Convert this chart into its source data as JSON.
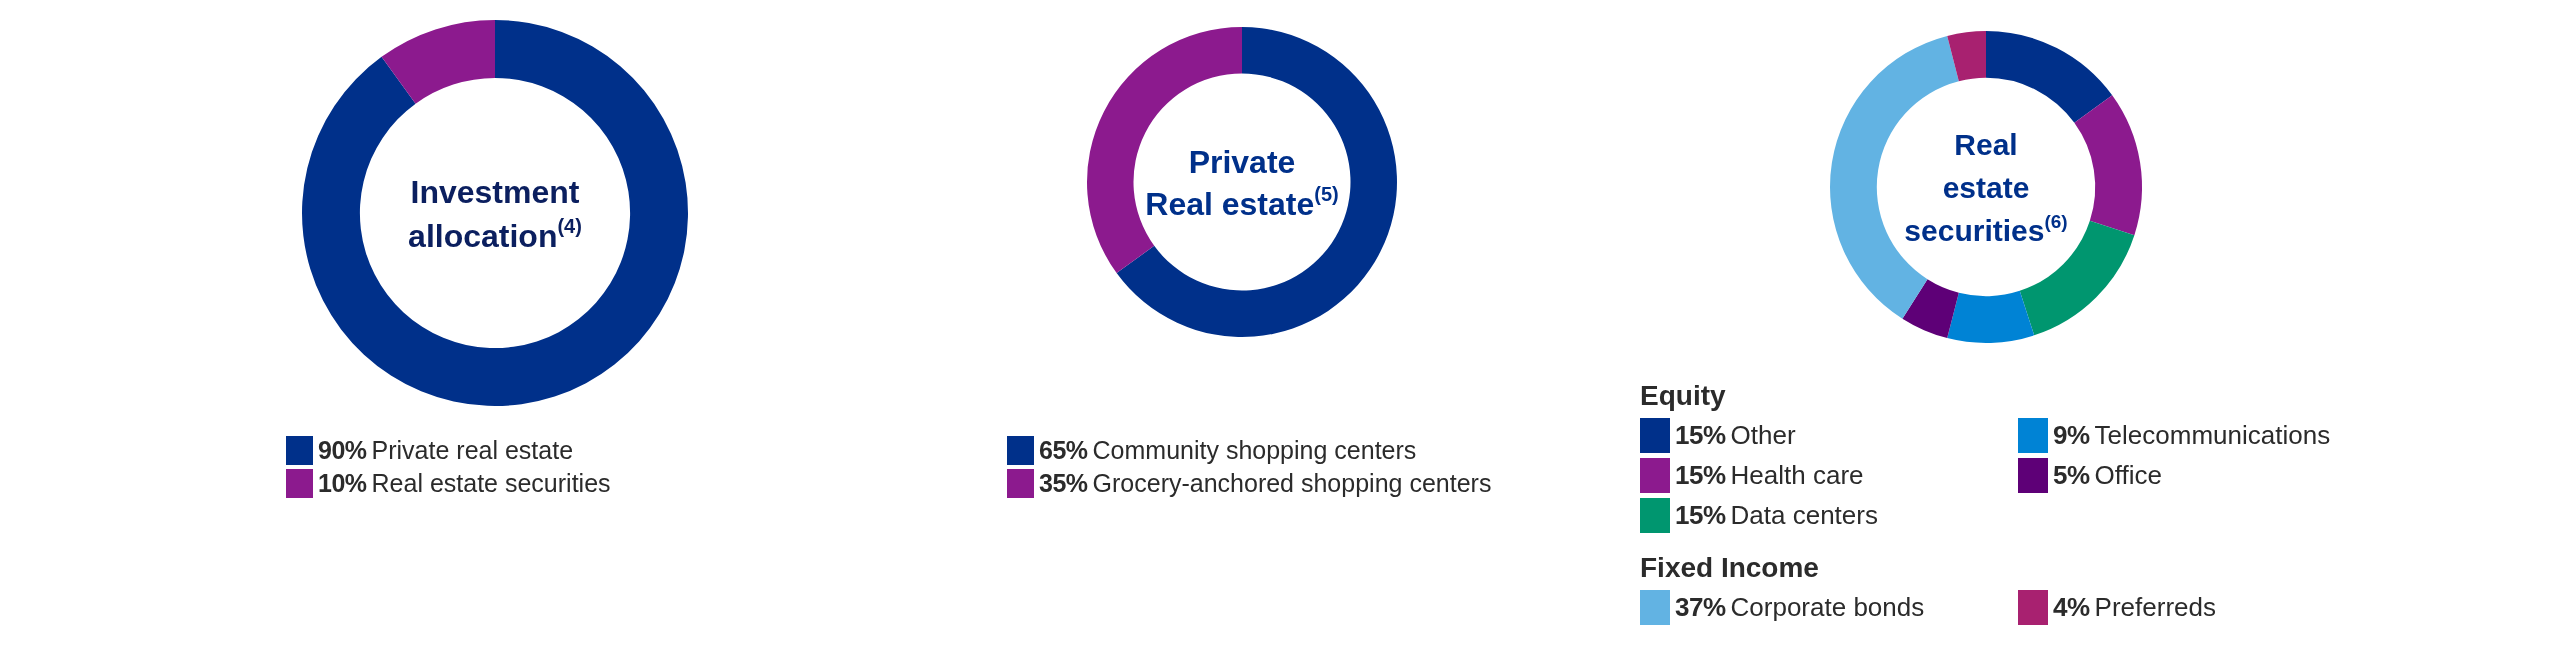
{
  "chart_data": [
    {
      "type": "donut",
      "title": "Investment\nallocation$^{(4)}$",
      "categories": [
        "Private real estate",
        "Real estate securities"
      ],
      "values": [
        90,
        10
      ],
      "colors": [
        "#00308a",
        "#8c1a8e"
      ],
      "value_labels": [
        "90%",
        "10%"
      ],
      "legend": "bottom"
    },
    {
      "type": "donut",
      "title": "Private\nReal estate$^{(5)}$",
      "categories": [
        "Community shopping centers",
        "Grocery-anchored shopping centers"
      ],
      "values": [
        65,
        35
      ],
      "colors": [
        "#00308a",
        "#8c1a8e"
      ],
      "value_labels": [
        "65%",
        "35%"
      ],
      "legend": "bottom"
    },
    {
      "type": "donut",
      "title": "Real\nestate\nsecurities$^{(6)}$",
      "categories": [
        "Other",
        "Health care",
        "Data centers",
        "Telecommunications",
        "Office",
        "Corporate bonds",
        "Preferreds"
      ],
      "values": [
        15,
        15,
        15,
        9,
        5,
        37,
        4
      ],
      "colors": [
        "#00308a",
        "#8c1a8e",
        "#00966f",
        "#0083d5",
        "#5e0077",
        "#62b3e3",
        "#a82170"
      ],
      "value_labels": [
        "15%",
        "15%",
        "15%",
        "9%",
        "5%",
        "37%",
        "4%"
      ],
      "legend": "bottom",
      "annotations": [
        "Equity",
        "Fixed Income"
      ]
    }
  ]
}
